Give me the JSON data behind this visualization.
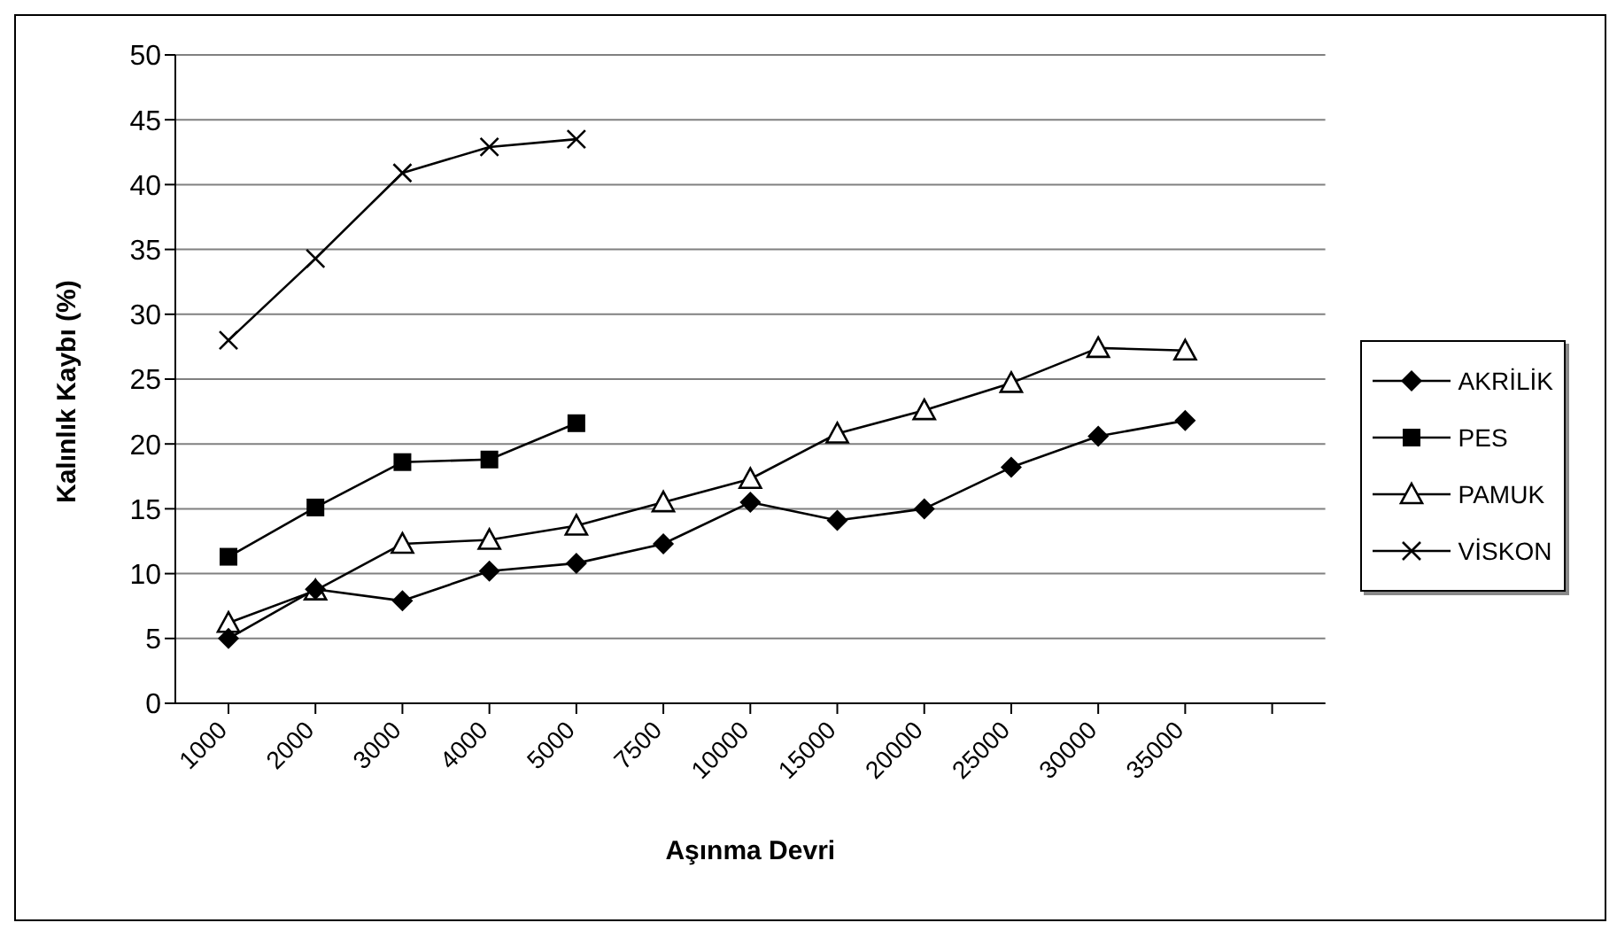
{
  "chart_data": {
    "type": "line",
    "xlabel": "Aşınma Devri",
    "ylabel": "Kalınlık Kaybı (%)",
    "categories": [
      "1000",
      "2000",
      "3000",
      "4000",
      "5000",
      "7500",
      "10000",
      "15000",
      "20000",
      "25000",
      "30000",
      "35000",
      null
    ],
    "series": [
      {
        "name": "AKRİLİK",
        "color": "#000000",
        "marker": "diamond",
        "values": [
          5,
          8.8,
          7.9,
          10.2,
          10.8,
          12.3,
          15.5,
          14.1,
          15,
          18.2,
          20.6,
          21.8,
          null
        ]
      },
      {
        "name": "PES",
        "color": "#000000",
        "marker": "square",
        "values": [
          11.3,
          15.1,
          18.6,
          18.8,
          21.6,
          null,
          null,
          null,
          null,
          null,
          null,
          null,
          null
        ]
      },
      {
        "name": "PAMUK",
        "color": "#000000",
        "marker": "triangle",
        "values": [
          6.2,
          8.7,
          12.3,
          12.6,
          13.7,
          15.5,
          17.3,
          20.8,
          22.6,
          24.7,
          27.4,
          27.2,
          null
        ]
      },
      {
        "name": "VİSKON",
        "color": "#000000",
        "marker": "cross",
        "values": [
          28,
          34.3,
          40.9,
          42.9,
          43.5,
          null,
          null,
          null,
          null,
          null,
          null,
          null,
          null
        ]
      }
    ],
    "ylim": [
      0,
      50
    ],
    "yticks": [
      0,
      5,
      10,
      15,
      20,
      25,
      30,
      35,
      40,
      45,
      50
    ],
    "grid": "y",
    "legend": "right"
  }
}
